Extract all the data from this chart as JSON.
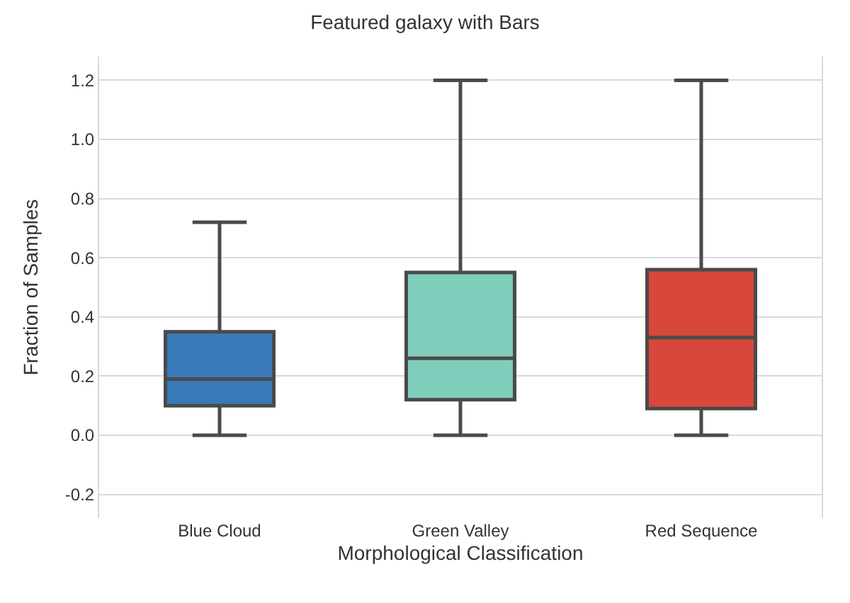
{
  "chart_data": {
    "type": "box",
    "title": "Featured galaxy with Bars",
    "xlabel": "Morphological Classification",
    "ylabel": "Fraction of Samples",
    "categories": [
      "Blue Cloud",
      "Green Valley",
      "Red Sequence"
    ],
    "colors": [
      "#3a7ab8",
      "#7fcdbb",
      "#d7473a"
    ],
    "boxes": [
      {
        "low": 0.0,
        "q1": 0.1,
        "median": 0.19,
        "q3": 0.35,
        "high": 0.72
      },
      {
        "low": 0.0,
        "q1": 0.12,
        "median": 0.26,
        "q3": 0.55,
        "high": 1.2
      },
      {
        "low": 0.0,
        "q1": 0.09,
        "median": 0.33,
        "q3": 0.56,
        "high": 1.2
      }
    ],
    "ylim": [
      -0.28,
      1.28
    ],
    "yticks": [
      {
        "value": -0.2,
        "label": "-0.2"
      },
      {
        "value": 0.0,
        "label": "0.0"
      },
      {
        "value": 0.2,
        "label": "0.2"
      },
      {
        "value": 0.4,
        "label": "0.4"
      },
      {
        "value": 0.6,
        "label": "0.6"
      },
      {
        "value": 0.8,
        "label": "0.8"
      },
      {
        "value": 1.0,
        "label": "1.0"
      },
      {
        "value": 1.2,
        "label": "1.2"
      }
    ],
    "grid": "y"
  }
}
